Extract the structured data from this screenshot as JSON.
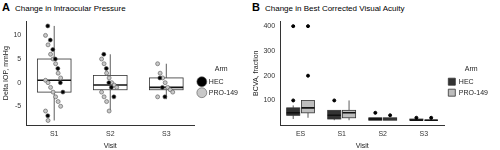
{
  "chart_data": [
    {
      "panel_label": "A",
      "type": "box",
      "title": "Change in Intraocular Pressure",
      "x_label": "Visit",
      "y_label": "Delta IOP, mmHg",
      "categories": [
        "S1",
        "S2",
        "S3"
      ],
      "ylim": [
        -9,
        13
      ],
      "yticks": [
        -5,
        0,
        5,
        10
      ],
      "grid": false,
      "legend": "right",
      "legend_title": "Arm",
      "boxes": [
        {
          "category": "S1",
          "whisker_low": -8,
          "q1": -2,
          "median": 0.5,
          "q3": 5,
          "whisker_high": 12
        },
        {
          "category": "S2",
          "whisker_low": -6,
          "q1": -1.5,
          "median": -0.5,
          "q3": 1.5,
          "whisker_high": 6
        },
        {
          "category": "S3",
          "whisker_low": -3.5,
          "q1": -1.5,
          "median": -1,
          "q3": 1,
          "whisker_high": 4
        }
      ],
      "series": [
        {
          "name": "HEC",
          "type": "scatter",
          "color": "#000000",
          "marker": "circle",
          "values": [
            {
              "x": "S1",
              "y": 12
            },
            {
              "x": "S1",
              "y": 9
            },
            {
              "x": "S1",
              "y": 7
            },
            {
              "x": "S1",
              "y": 5
            },
            {
              "x": "S1",
              "y": 3
            },
            {
              "x": "S1",
              "y": 0
            },
            {
              "x": "S1",
              "y": -2
            },
            {
              "x": "S1",
              "y": -7
            },
            {
              "x": "S2",
              "y": 6
            },
            {
              "x": "S2",
              "y": 3
            },
            {
              "x": "S2",
              "y": 0
            },
            {
              "x": "S2",
              "y": -1
            },
            {
              "x": "S2",
              "y": -3
            },
            {
              "x": "S3",
              "y": 1
            },
            {
              "x": "S3",
              "y": -1
            },
            {
              "x": "S3",
              "y": -3
            }
          ]
        },
        {
          "name": "PRO-149",
          "type": "scatter",
          "color": "#c8c8c8",
          "marker": "circle",
          "values": [
            {
              "x": "S1",
              "y": 10
            },
            {
              "x": "S1",
              "y": 8
            },
            {
              "x": "S1",
              "y": 6
            },
            {
              "x": "S1",
              "y": 5
            },
            {
              "x": "S1",
              "y": 4
            },
            {
              "x": "S1",
              "y": 2
            },
            {
              "x": "S1",
              "y": 1
            },
            {
              "x": "S1",
              "y": 0.5
            },
            {
              "x": "S1",
              "y": 0
            },
            {
              "x": "S1",
              "y": -1
            },
            {
              "x": "S1",
              "y": -2
            },
            {
              "x": "S1",
              "y": -3
            },
            {
              "x": "S1",
              "y": -4
            },
            {
              "x": "S1",
              "y": -5
            },
            {
              "x": "S1",
              "y": -6
            },
            {
              "x": "S1",
              "y": -8
            },
            {
              "x": "S2",
              "y": 5
            },
            {
              "x": "S2",
              "y": 4
            },
            {
              "x": "S2",
              "y": 2
            },
            {
              "x": "S2",
              "y": 1
            },
            {
              "x": "S2",
              "y": 0
            },
            {
              "x": "S2",
              "y": -0.5
            },
            {
              "x": "S2",
              "y": -1
            },
            {
              "x": "S2",
              "y": -2
            },
            {
              "x": "S2",
              "y": -3
            },
            {
              "x": "S2",
              "y": -4
            },
            {
              "x": "S2",
              "y": -6
            },
            {
              "x": "S3",
              "y": 4
            },
            {
              "x": "S3",
              "y": 2
            },
            {
              "x": "S3",
              "y": 1
            },
            {
              "x": "S3",
              "y": 0
            },
            {
              "x": "S3",
              "y": -1
            },
            {
              "x": "S3",
              "y": -1.5
            },
            {
              "x": "S3",
              "y": -2
            },
            {
              "x": "S3",
              "y": -3
            }
          ]
        }
      ]
    },
    {
      "panel_label": "B",
      "type": "box",
      "title": "Change in Best Corrected Visual Acuity",
      "x_label": "Visit",
      "y_label": "BCVA, fraction",
      "categories": [
        "ES",
        "S1",
        "S2",
        "S3"
      ],
      "ylim": [
        0,
        420
      ],
      "yticks": [
        100,
        200,
        300,
        400
      ],
      "grid": false,
      "legend": "right",
      "legend_title": "Arm",
      "series": [
        {
          "name": "HEC",
          "color": "#333333",
          "boxes": [
            {
              "category": "ES",
              "whisker_low": 25,
              "q1": 40,
              "median": 50,
              "q3": 70,
              "whisker_high": 80,
              "outliers": [
                100,
                400
              ]
            },
            {
              "category": "S1",
              "whisker_low": 20,
              "q1": 25,
              "median": 40,
              "q3": 60,
              "whisker_high": 60,
              "outliers": [
                100
              ]
            },
            {
              "category": "S2",
              "whisker_low": 20,
              "q1": 20,
              "median": 25,
              "q3": 30,
              "whisker_high": 30,
              "outliers": [
                50
              ]
            },
            {
              "category": "S3",
              "whisker_low": 20,
              "q1": 20,
              "median": 20,
              "q3": 25,
              "whisker_high": 25,
              "outliers": [
                30
              ]
            }
          ]
        },
        {
          "name": "PRO-149",
          "color": "#bdbdbd",
          "boxes": [
            {
              "category": "ES",
              "whisker_low": 30,
              "q1": 50,
              "median": 70,
              "q3": 100,
              "whisker_high": 100,
              "outliers": [
                200,
                400
              ]
            },
            {
              "category": "S1",
              "whisker_low": 20,
              "q1": 30,
              "median": 50,
              "q3": 60,
              "whisker_high": 100,
              "outliers": []
            },
            {
              "category": "S2",
              "whisker_low": 20,
              "q1": 20,
              "median": 25,
              "q3": 30,
              "whisker_high": 30,
              "outliers": [
                40
              ]
            },
            {
              "category": "S3",
              "whisker_low": 20,
              "q1": 20,
              "median": 20,
              "q3": 20,
              "whisker_high": 25,
              "outliers": [
                30
              ]
            }
          ]
        }
      ]
    }
  ]
}
